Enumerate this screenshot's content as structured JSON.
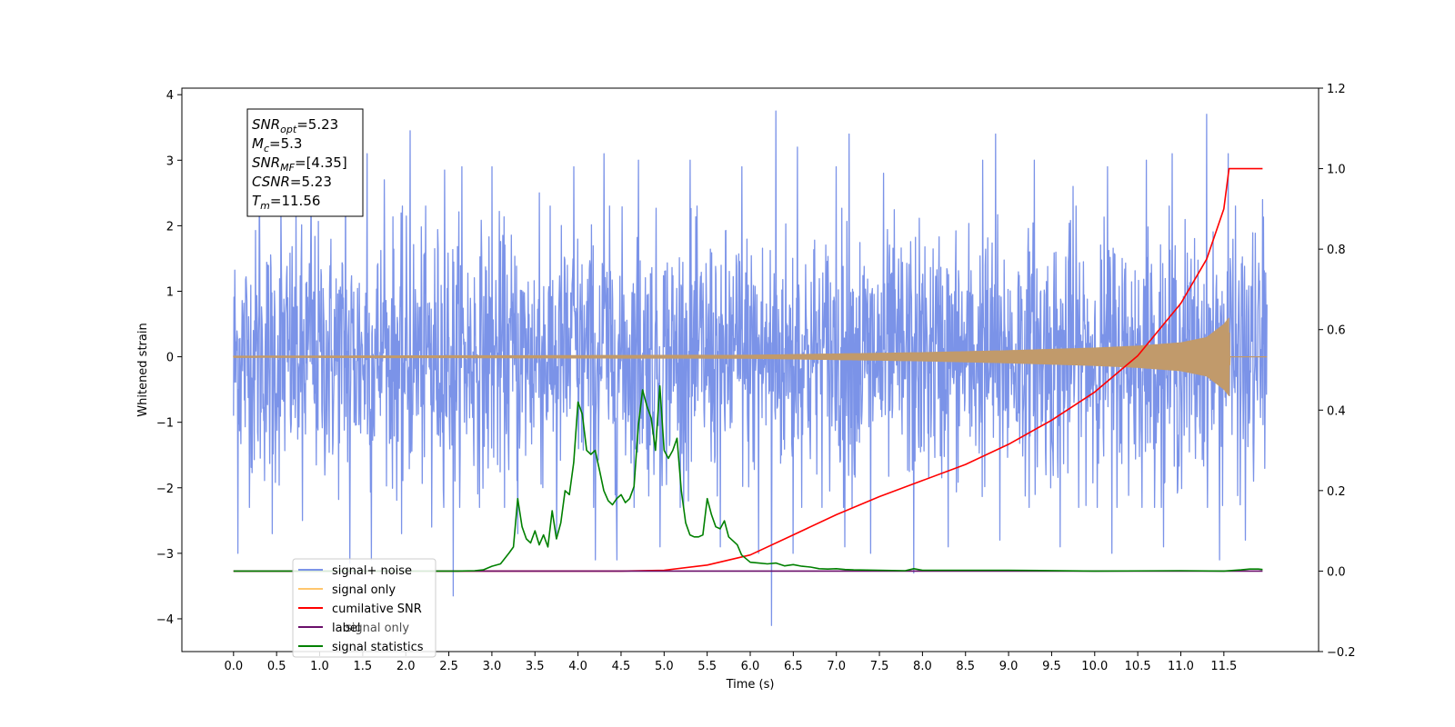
{
  "chart_data": {
    "type": "line",
    "xlabel": "Time (s)",
    "ylabel_left": "Whitened strain",
    "ylabel_right": "",
    "xlim": [
      -0.6,
      12.6
    ],
    "ylim_left": [
      -4.5,
      4.1
    ],
    "ylim_right": [
      -0.2,
      1.2
    ],
    "grid": false,
    "x_ticks": [
      0.0,
      0.5,
      1.0,
      1.5,
      2.0,
      2.5,
      3.0,
      3.5,
      4.0,
      4.5,
      5.0,
      5.5,
      6.0,
      6.5,
      7.0,
      7.5,
      8.0,
      8.5,
      9.0,
      9.5,
      10.0,
      10.5,
      11.0,
      11.5
    ],
    "x_tick_labels": [
      "0.0",
      "0.5",
      "1.0",
      "1.5",
      "2.0",
      "2.5",
      "3.0",
      "3.5",
      "4.0",
      "4.5",
      "5.0",
      "5.5",
      "6.0",
      "6.5",
      "7.0",
      "7.5",
      "8.0",
      "8.5",
      "9.0",
      "9.5",
      "10.0",
      "10.5",
      "11.0",
      "11.5"
    ],
    "y_ticks_left": [
      -4,
      -3,
      -2,
      -1,
      0,
      1,
      2,
      3,
      4
    ],
    "y_tick_labels_left": [
      "−4",
      "−3",
      "−2",
      "−1",
      "0",
      "1",
      "2",
      "3",
      "4"
    ],
    "y_ticks_right": [
      -0.2,
      0.0,
      0.2,
      0.4,
      0.6,
      0.8,
      1.0,
      1.2
    ],
    "y_tick_labels_right": [
      "−0.2",
      "0.0",
      "0.2",
      "0.4",
      "0.6",
      "0.8",
      "1.0",
      "1.2"
    ],
    "legend": {
      "placement": "lower-left",
      "entries": [
        {
          "label": "signal+ noise",
          "color": "#7b93e8"
        },
        {
          "label": "signal only",
          "color": "#ffc66e"
        },
        {
          "label": "cumilative SNR",
          "color": "#ff0000"
        },
        {
          "label": "label",
          "color": "#6a0f6a"
        },
        {
          "label": "signal statistics",
          "color": "#008000"
        }
      ],
      "hidden_text": "signal only"
    },
    "annotation": {
      "lines": [
        {
          "main": "SNR",
          "sub": "opt",
          "value": "=5.23"
        },
        {
          "main": "M",
          "sub": "c",
          "value": "=5.3"
        },
        {
          "main": "SNR",
          "sub": "MF",
          "value": "=[4.35]"
        },
        {
          "main": "CSNR",
          "sub": "",
          "value": "=5.23"
        },
        {
          "main": "T",
          "sub": "m",
          "value": "=11.56"
        }
      ]
    },
    "series": [
      {
        "name": "signal+ noise",
        "axis": "left",
        "color": "#7b93e8",
        "style": "noise",
        "x_range": [
          0.0,
          12.0
        ],
        "typical_range": [
          -2.0,
          2.0
        ],
        "peaks_pos": [
          [
            0.05,
            2.6
          ],
          [
            0.3,
            2.9
          ],
          [
            0.55,
            2.4
          ],
          [
            0.9,
            2.6
          ],
          [
            1.3,
            3.0
          ],
          [
            1.55,
            3.1
          ],
          [
            1.75,
            2.7
          ],
          [
            2.05,
            3.45
          ],
          [
            2.45,
            2.85
          ],
          [
            2.65,
            2.9
          ],
          [
            3.0,
            2.9
          ],
          [
            3.3,
            2.7
          ],
          [
            3.55,
            2.5
          ],
          [
            3.95,
            2.9
          ],
          [
            4.3,
            3.1
          ],
          [
            4.7,
            3.0
          ],
          [
            4.95,
            3.45
          ],
          [
            5.3,
            3.0
          ],
          [
            5.65,
            3.0
          ],
          [
            5.9,
            2.9
          ],
          [
            6.3,
            3.75
          ],
          [
            6.55,
            3.2
          ],
          [
            7.0,
            2.9
          ],
          [
            7.15,
            3.4
          ],
          [
            7.55,
            2.8
          ],
          [
            7.9,
            2.9
          ],
          [
            8.3,
            3.1
          ],
          [
            8.7,
            3.0
          ],
          [
            8.85,
            3.4
          ],
          [
            9.3,
            3.0
          ],
          [
            9.75,
            2.6
          ],
          [
            10.15,
            2.9
          ],
          [
            10.6,
            3.0
          ],
          [
            10.9,
            3.1
          ],
          [
            11.3,
            3.7
          ],
          [
            11.55,
            3.1
          ],
          [
            11.95,
            2.4
          ]
        ],
        "peaks_neg": [
          [
            -0.0,
            -0.9
          ],
          [
            0.05,
            -3.0
          ],
          [
            0.45,
            -2.7
          ],
          [
            0.8,
            -2.5
          ],
          [
            1.35,
            -3.15
          ],
          [
            1.6,
            -3.1
          ],
          [
            1.95,
            -2.7
          ],
          [
            2.3,
            -2.6
          ],
          [
            2.55,
            -3.65
          ],
          [
            3.3,
            -2.7
          ],
          [
            3.75,
            -2.7
          ],
          [
            4.2,
            -3.1
          ],
          [
            4.45,
            -3.1
          ],
          [
            4.95,
            -2.9
          ],
          [
            5.65,
            -2.9
          ],
          [
            6.1,
            -3.0
          ],
          [
            6.25,
            -4.1
          ],
          [
            6.5,
            -3.0
          ],
          [
            7.1,
            -2.9
          ],
          [
            7.4,
            -3.0
          ],
          [
            7.9,
            -3.3
          ],
          [
            8.3,
            -2.9
          ],
          [
            8.9,
            -2.8
          ],
          [
            9.6,
            -2.9
          ],
          [
            10.2,
            -3.0
          ],
          [
            10.8,
            -2.9
          ],
          [
            11.45,
            -3.1
          ],
          [
            11.75,
            -2.8
          ]
        ]
      },
      {
        "name": "signal only",
        "axis": "left",
        "color": "#c19a6b",
        "style": "chirp",
        "x_range": [
          0.0,
          12.0
        ],
        "envelope": {
          "x": [
            0.0,
            6.0,
            8.0,
            9.0,
            10.0,
            10.5,
            11.0,
            11.3,
            11.5,
            11.56,
            11.57,
            12.0
          ],
          "y": [
            0.015,
            0.03,
            0.07,
            0.1,
            0.14,
            0.17,
            0.22,
            0.3,
            0.5,
            0.6,
            0.0,
            0.0
          ]
        }
      },
      {
        "name": "cumilative SNR",
        "axis": "right",
        "color": "#ff0000",
        "x": [
          0.0,
          3.0,
          4.0,
          4.5,
          5.0,
          5.5,
          6.0,
          6.5,
          7.0,
          7.5,
          8.0,
          8.5,
          9.0,
          9.5,
          10.0,
          10.5,
          11.0,
          11.3,
          11.5,
          11.56,
          11.57,
          11.95
        ],
        "values": [
          0.0,
          0.0,
          0.0,
          0.0,
          0.002,
          0.015,
          0.04,
          0.09,
          0.14,
          0.185,
          0.225,
          0.265,
          0.315,
          0.375,
          0.445,
          0.535,
          0.665,
          0.775,
          0.9,
          1.0,
          1.0,
          1.0
        ]
      },
      {
        "name": "label",
        "axis": "right",
        "color": "#6a0f6a",
        "x": [
          0.0,
          11.95
        ],
        "values": [
          0.0,
          0.0
        ]
      },
      {
        "name": "signal statistics",
        "axis": "right",
        "color": "#008000",
        "x": [
          0.0,
          2.6,
          2.8,
          2.9,
          3.0,
          3.1,
          3.2,
          3.25,
          3.3,
          3.35,
          3.4,
          3.45,
          3.5,
          3.55,
          3.6,
          3.65,
          3.7,
          3.75,
          3.8,
          3.85,
          3.9,
          3.95,
          4.0,
          4.05,
          4.1,
          4.15,
          4.2,
          4.25,
          4.3,
          4.35,
          4.4,
          4.45,
          4.5,
          4.55,
          4.6,
          4.65,
          4.7,
          4.75,
          4.8,
          4.85,
          4.9,
          4.95,
          5.0,
          5.05,
          5.1,
          5.15,
          5.2,
          5.25,
          5.3,
          5.35,
          5.4,
          5.45,
          5.5,
          5.55,
          5.6,
          5.65,
          5.7,
          5.75,
          5.8,
          5.85,
          5.9,
          6.0,
          6.1,
          6.2,
          6.3,
          6.4,
          6.5,
          6.6,
          6.7,
          6.8,
          6.9,
          7.0,
          7.1,
          7.2,
          7.5,
          7.8,
          7.9,
          8.0,
          9.0,
          10.0,
          11.0,
          11.5,
          11.7,
          11.8,
          11.9,
          11.95
        ],
        "values": [
          0.0,
          0.0,
          0.001,
          0.003,
          0.012,
          0.018,
          0.045,
          0.06,
          0.18,
          0.11,
          0.08,
          0.07,
          0.1,
          0.065,
          0.09,
          0.06,
          0.15,
          0.08,
          0.12,
          0.2,
          0.19,
          0.27,
          0.42,
          0.39,
          0.3,
          0.29,
          0.3,
          0.25,
          0.2,
          0.175,
          0.165,
          0.18,
          0.19,
          0.17,
          0.18,
          0.21,
          0.36,
          0.45,
          0.41,
          0.38,
          0.3,
          0.46,
          0.3,
          0.28,
          0.3,
          0.33,
          0.2,
          0.12,
          0.09,
          0.085,
          0.085,
          0.09,
          0.18,
          0.14,
          0.11,
          0.105,
          0.125,
          0.085,
          0.075,
          0.065,
          0.04,
          0.022,
          0.02,
          0.018,
          0.02,
          0.013,
          0.016,
          0.012,
          0.01,
          0.006,
          0.005,
          0.006,
          0.004,
          0.003,
          0.002,
          0.001,
          0.006,
          0.002,
          0.002,
          0.0,
          0.001,
          0.0,
          0.003,
          0.005,
          0.005,
          0.004
        ]
      }
    ]
  }
}
